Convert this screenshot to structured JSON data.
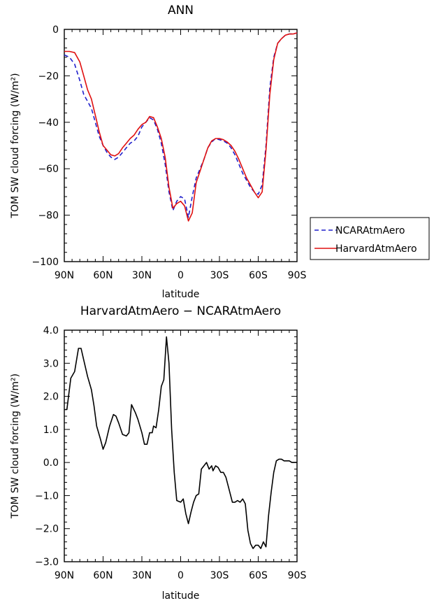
{
  "chart_data": [
    {
      "type": "line",
      "title": "ANN",
      "xlabel": "latitude",
      "ylabel": "TOM SW cloud forcing (W/m²)",
      "xlim": [
        90,
        -90
      ],
      "ylim": [
        -100,
        0
      ],
      "xticks": [
        90,
        60,
        30,
        0,
        -30,
        -60,
        -90
      ],
      "xticklabels": [
        "90N",
        "60N",
        "30N",
        "0",
        "30S",
        "60S",
        "90S"
      ],
      "yticks": [
        0,
        -20,
        -40,
        -60,
        -80,
        -100
      ],
      "yticklabels": [
        "0",
        "−20",
        "−40",
        "−60",
        "−80",
        "−100"
      ],
      "grid": false,
      "legend": "right",
      "series": [
        {
          "name": "NCARAtmAero",
          "color": "#1f1fcc",
          "style": "dashed",
          "x": [
            90,
            86,
            82,
            78,
            75,
            72,
            69,
            66,
            63,
            60,
            57,
            54,
            51,
            48,
            45,
            42,
            39,
            36,
            33,
            30,
            27,
            24,
            21,
            18,
            15,
            12,
            9,
            6,
            3,
            0,
            -3,
            -6,
            -9,
            -12,
            -15,
            -18,
            -21,
            -24,
            -27,
            -30,
            -33,
            -36,
            -39,
            -42,
            -45,
            -48,
            -51,
            -54,
            -57,
            -60,
            -63,
            -66,
            -69,
            -72,
            -75,
            -78,
            -81,
            -84,
            -87,
            -90
          ],
          "y": [
            -11,
            -12,
            -15,
            -22,
            -28,
            -31,
            -34,
            -40,
            -46,
            -50,
            -53,
            -55,
            -56,
            -55,
            -53,
            -51,
            -49,
            -48,
            -46,
            -42,
            -40,
            -38,
            -39,
            -43,
            -49,
            -58,
            -70,
            -78,
            -74,
            -72,
            -73,
            -81,
            -72,
            -64,
            -60,
            -56,
            -51,
            -48.5,
            -47,
            -47.5,
            -48,
            -49,
            -51,
            -54,
            -58,
            -62,
            -65,
            -68,
            -70,
            -71,
            -67,
            -50,
            -25,
            -12,
            -6,
            -4,
            -2.5,
            -2,
            -2,
            -1.5
          ]
        },
        {
          "name": "HarvardAtmAero",
          "color": "#e01010",
          "style": "solid",
          "x": [
            90,
            86,
            82,
            78,
            75,
            72,
            69,
            66,
            63,
            60,
            57,
            54,
            51,
            48,
            45,
            42,
            39,
            36,
            33,
            30,
            27,
            24,
            21,
            18,
            15,
            12,
            9,
            6,
            3,
            0,
            -3,
            -6,
            -9,
            -12,
            -15,
            -18,
            -21,
            -24,
            -27,
            -30,
            -33,
            -36,
            -39,
            -42,
            -45,
            -48,
            -51,
            -54,
            -57,
            -60,
            -63,
            -66,
            -69,
            -72,
            -75,
            -78,
            -81,
            -84,
            -87,
            -90
          ],
          "y": [
            -9.5,
            -9.5,
            -10,
            -14,
            -20,
            -26,
            -30,
            -37,
            -44,
            -50,
            -52,
            -54,
            -54.5,
            -53.5,
            -51,
            -49,
            -47,
            -45.5,
            -43,
            -41,
            -40,
            -37.5,
            -38,
            -42,
            -47,
            -55,
            -68,
            -77,
            -75,
            -74,
            -76,
            -82.5,
            -79,
            -66,
            -61,
            -56,
            -51,
            -48,
            -47,
            -47,
            -47.5,
            -48.5,
            -50,
            -52.5,
            -56,
            -60,
            -64,
            -67,
            -70,
            -72.5,
            -70,
            -52,
            -28,
            -13,
            -6,
            -4,
            -2.5,
            -2,
            -2,
            -1.5
          ]
        }
      ]
    },
    {
      "type": "line",
      "title": "HarvardAtmAero − NCARAtmAero",
      "xlabel": "latitude",
      "ylabel": "TOM SW cloud forcing (W/m²)",
      "xlim": [
        90,
        -90
      ],
      "ylim": [
        -3,
        4
      ],
      "xticks": [
        90,
        60,
        30,
        0,
        -30,
        -60,
        -90
      ],
      "xticklabels": [
        "90N",
        "60N",
        "30N",
        "0",
        "30S",
        "60S",
        "90S"
      ],
      "yticks": [
        4,
        3,
        2,
        1,
        0,
        -1,
        -2,
        -3
      ],
      "yticklabels": [
        "4.0",
        "3.0",
        "2.0",
        "1.0",
        "0.0",
        "−1.0",
        "−2.0",
        "−3.0"
      ],
      "grid": false,
      "series": [
        {
          "color": "#000000",
          "style": "solid",
          "x": [
            90,
            88,
            85,
            82,
            79,
            77,
            75,
            72,
            69,
            67,
            65,
            62,
            60,
            58,
            55,
            52,
            50,
            48,
            45,
            42,
            40,
            38,
            35,
            33,
            30,
            28,
            26,
            24,
            22,
            21,
            19,
            17,
            15,
            13,
            11,
            9,
            7,
            5,
            3,
            0,
            -2,
            -4,
            -6,
            -8,
            -10,
            -12,
            -14,
            -16,
            -18,
            -20,
            -22,
            -24,
            -25,
            -27,
            -29,
            -31,
            -33,
            -35,
            -37,
            -40,
            -42,
            -44,
            -46,
            -48,
            -50,
            -52,
            -54,
            -56,
            -58,
            -60,
            -62,
            -64,
            -66,
            -68,
            -70,
            -72,
            -74,
            -76,
            -78,
            -80,
            -82,
            -84,
            -86,
            -88,
            -90
          ],
          "y": [
            1.6,
            1.6,
            2.55,
            2.75,
            3.45,
            3.45,
            3.1,
            2.6,
            2.2,
            1.7,
            1.1,
            0.7,
            0.4,
            0.6,
            1.1,
            1.45,
            1.4,
            1.2,
            0.85,
            0.8,
            0.9,
            1.75,
            1.5,
            1.3,
            0.9,
            0.55,
            0.55,
            0.9,
            0.9,
            1.1,
            1.05,
            1.6,
            2.3,
            2.5,
            3.8,
            3.0,
            1.0,
            -0.3,
            -1.15,
            -1.2,
            -1.1,
            -1.55,
            -1.85,
            -1.5,
            -1.2,
            -1.0,
            -0.95,
            -0.2,
            -0.1,
            0.0,
            -0.2,
            -0.1,
            -0.25,
            -0.1,
            -0.15,
            -0.3,
            -0.3,
            -0.45,
            -0.75,
            -1.2,
            -1.2,
            -1.15,
            -1.2,
            -1.1,
            -1.25,
            -2.05,
            -2.45,
            -2.6,
            -2.5,
            -2.5,
            -2.6,
            -2.4,
            -2.55,
            -1.6,
            -0.9,
            -0.3,
            0.05,
            0.1,
            0.1,
            0.05,
            0.05,
            0.05,
            0.0,
            0.0,
            0.0
          ]
        }
      ]
    }
  ]
}
